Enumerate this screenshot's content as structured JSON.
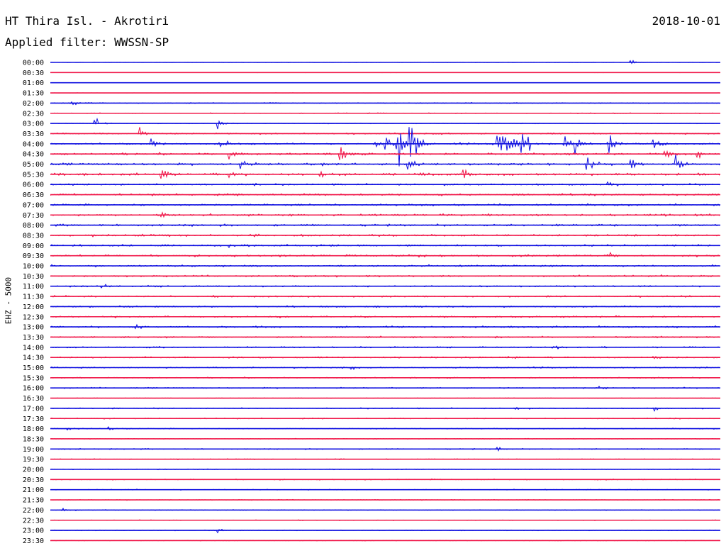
{
  "header": {
    "station": "HT Thira Isl. - Akrotiri",
    "date": "2018-10-01",
    "filter": "Applied filter: WWSSN-SP"
  },
  "channel_label": "EHZ - 5000",
  "colors": {
    "blue": "#1010e0",
    "red": "#f0184a"
  },
  "chart_data": {
    "type": "line",
    "chart_kind": "helicorder",
    "row_labels": [
      "00:00",
      "00:30",
      "01:00",
      "01:30",
      "02:00",
      "02:30",
      "03:00",
      "03:30",
      "04:00",
      "04:30",
      "05:00",
      "05:30",
      "06:00",
      "06:30",
      "07:00",
      "07:30",
      "08:00",
      "08:30",
      "09:00",
      "09:30",
      "10:00",
      "10:30",
      "11:00",
      "11:30",
      "12:00",
      "12:30",
      "13:00",
      "13:30",
      "14:00",
      "14:30",
      "15:00",
      "15:30",
      "16:00",
      "16:30",
      "17:00",
      "17:30",
      "18:00",
      "18:30",
      "19:00",
      "19:30",
      "20:00",
      "20:30",
      "21:00",
      "21:30",
      "22:00",
      "22:30",
      "23:00",
      "23:30"
    ],
    "row_minutes": 30,
    "noise_level": [
      0.3,
      0.2,
      0.15,
      0.2,
      0.7,
      0.6,
      0.5,
      1.0,
      1.2,
      1.4,
      1.6,
      1.6,
      1.2,
      1.4,
      1.3,
      1.4,
      1.4,
      1.5,
      1.3,
      1.3,
      1.2,
      1.2,
      1.1,
      1.1,
      1.1,
      1.1,
      1.2,
      1.1,
      1.0,
      1.1,
      0.9,
      0.8,
      0.9,
      0.4,
      0.8,
      0.7,
      0.7,
      0.5,
      0.7,
      0.6,
      0.6,
      0.7,
      0.6,
      0.6,
      0.6,
      0.5,
      0.5,
      0.4
    ],
    "events": [
      {
        "row": 0,
        "minute": 26.0,
        "amp": 4
      },
      {
        "row": 4,
        "minute": 1.0,
        "amp": 6
      },
      {
        "row": 6,
        "minute": 2.0,
        "amp": 12
      },
      {
        "row": 6,
        "minute": 7.5,
        "amp": 10
      },
      {
        "row": 7,
        "minute": 4.0,
        "amp": 14
      },
      {
        "row": 8,
        "minute": 4.5,
        "amp": 16
      },
      {
        "row": 8,
        "minute": 7.6,
        "amp": 18
      },
      {
        "row": 8,
        "minute": 14.5,
        "amp": 14
      },
      {
        "row": 8,
        "minute": 15.0,
        "amp": 16
      },
      {
        "row": 8,
        "minute": 15.5,
        "amp": 14
      },
      {
        "row": 8,
        "minute": 16.0,
        "amp": 16
      },
      {
        "row": 8,
        "minute": 16.5,
        "amp": 14
      },
      {
        "row": 8,
        "minute": 23.0,
        "amp": 22
      },
      {
        "row": 8,
        "minute": 23.5,
        "amp": 20
      },
      {
        "row": 8,
        "minute": 25.0,
        "amp": 18
      },
      {
        "row": 8,
        "minute": 27.0,
        "amp": 18
      },
      {
        "row": 9,
        "minute": 8.0,
        "amp": 16
      },
      {
        "row": 9,
        "minute": 13.0,
        "amp": 18
      },
      {
        "row": 9,
        "minute": 27.5,
        "amp": 14
      },
      {
        "row": 9,
        "minute": 29.0,
        "amp": 18
      },
      {
        "row": 10,
        "minute": 8.5,
        "amp": 20
      },
      {
        "row": 10,
        "minute": 12.0,
        "amp": 16
      },
      {
        "row": 10,
        "minute": 16.0,
        "amp": 18
      },
      {
        "row": 10,
        "minute": 24.0,
        "amp": 20
      },
      {
        "row": 10,
        "minute": 26.0,
        "amp": 16
      },
      {
        "row": 10,
        "minute": 28.0,
        "amp": 18
      },
      {
        "row": 11,
        "minute": 2.2,
        "amp": 10
      },
      {
        "row": 11,
        "minute": 5.0,
        "amp": 14
      },
      {
        "row": 11,
        "minute": 8.0,
        "amp": 12
      },
      {
        "row": 11,
        "minute": 12.0,
        "amp": 10
      },
      {
        "row": 11,
        "minute": 18.5,
        "amp": 10
      },
      {
        "row": 12,
        "minute": 9.0,
        "amp": 5
      },
      {
        "row": 12,
        "minute": 25.0,
        "amp": 5
      },
      {
        "row": 15,
        "minute": 5.0,
        "amp": 5
      },
      {
        "row": 18,
        "minute": 8.0,
        "amp": 5
      },
      {
        "row": 19,
        "minute": 16.5,
        "amp": 5
      },
      {
        "row": 19,
        "minute": 25.0,
        "amp": 6
      },
      {
        "row": 22,
        "minute": 2.3,
        "amp": 5
      },
      {
        "row": 22,
        "minute": 23.5,
        "amp": 5
      },
      {
        "row": 26,
        "minute": 3.8,
        "amp": 6
      },
      {
        "row": 28,
        "minute": 22.5,
        "amp": 6
      },
      {
        "row": 29,
        "minute": 27.0,
        "amp": 5
      },
      {
        "row": 30,
        "minute": 13.5,
        "amp": 5
      },
      {
        "row": 32,
        "minute": 24.5,
        "amp": 5
      },
      {
        "row": 34,
        "minute": 20.8,
        "amp": 5
      },
      {
        "row": 34,
        "minute": 27.0,
        "amp": 5
      },
      {
        "row": 36,
        "minute": 0.7,
        "amp": 7
      },
      {
        "row": 36,
        "minute": 2.6,
        "amp": 4
      },
      {
        "row": 38,
        "minute": 20.0,
        "amp": 5
      },
      {
        "row": 44,
        "minute": 0.5,
        "amp": 3
      },
      {
        "row": 46,
        "minute": 7.5,
        "amp": 4
      }
    ],
    "swarms": [
      {
        "row": 8,
        "start_minute": 15.5,
        "end_minute": 16.5,
        "amp": 26
      },
      {
        "row": 8,
        "start_minute": 20.0,
        "end_minute": 21.5,
        "amp": 26
      }
    ],
    "color_order": [
      "blue",
      "red"
    ]
  }
}
